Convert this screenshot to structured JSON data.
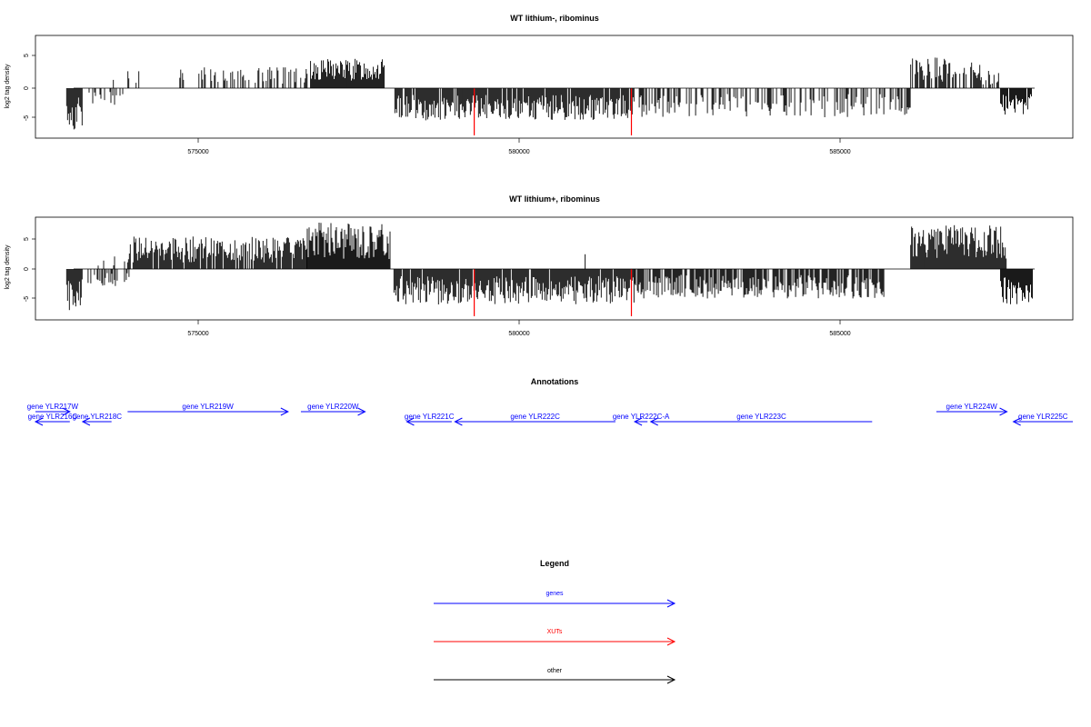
{
  "chart_data": [
    {
      "type": "bar",
      "title": "WT lithium-, ribominus",
      "ylabel": "log2 tag density",
      "xlim": [
        572200,
        588700
      ],
      "ylim": [
        -8.5,
        8.5
      ],
      "x_ticks": [
        575000,
        580000,
        585000
      ],
      "x_tick_labels": [
        "575000",
        "580000",
        "585000"
      ],
      "y_ticks": [
        -5,
        0,
        5
      ],
      "y_tick_labels": [
        "-5",
        "0",
        "5"
      ],
      "series": [
        {
          "strand": "plus",
          "color": "#000000",
          "segments": [
            {
              "from": 573650,
              "to": 574300,
              "density": 0.15,
              "max": 3.4,
              "seed": 11
            },
            {
              "from": 574700,
              "to": 576700,
              "density": 0.35,
              "max": 3.6,
              "seed": 12
            },
            {
              "from": 576750,
              "to": 577900,
              "density": 1.0,
              "max": 5.0,
              "seed": 13
            },
            {
              "from": 586100,
              "to": 587200,
              "density": 0.7,
              "max": 5.2,
              "seed": 14
            },
            {
              "from": 587200,
              "to": 587500,
              "density": 0.3,
              "max": 3.0,
              "seed": 15
            }
          ]
        },
        {
          "strand": "minus",
          "color": "#000000",
          "segments": [
            {
              "from": 572950,
              "to": 573200,
              "density": 1.0,
              "max": 7.0,
              "seed": 21
            },
            {
              "from": 573300,
              "to": 573850,
              "density": 0.25,
              "max": 3.0,
              "seed": 22
            },
            {
              "from": 578050,
              "to": 581800,
              "density": 0.9,
              "max": 5.5,
              "seed": 23
            },
            {
              "from": 581800,
              "to": 586100,
              "density": 0.45,
              "max": 5.0,
              "seed": 24
            },
            {
              "from": 587500,
              "to": 588000,
              "density": 0.95,
              "max": 4.5,
              "seed": 25
            }
          ]
        },
        {
          "strand": "minus",
          "color": "#ff0000",
          "points": [
            {
              "x": 579300,
              "y": -8
            },
            {
              "x": 581750,
              "y": -8
            }
          ]
        }
      ]
    },
    {
      "type": "bar",
      "title": "WT lithium+, ribominus",
      "ylabel": "log2 tag density",
      "xlim": [
        572200,
        588700
      ],
      "ylim": [
        -8.5,
        8.5
      ],
      "x_ticks": [
        575000,
        580000,
        585000
      ],
      "x_tick_labels": [
        "575000",
        "580000",
        "585000"
      ],
      "y_ticks": [
        -5,
        0,
        5
      ],
      "y_tick_labels": [
        "-5",
        "0",
        "5"
      ],
      "series": [
        {
          "strand": "plus",
          "color": "#000000",
          "segments": [
            {
              "from": 573400,
              "to": 573900,
              "density": 0.2,
              "max": 2.5,
              "seed": 31
            },
            {
              "from": 573900,
              "to": 576700,
              "density": 0.85,
              "max": 5.5,
              "seed": 32
            },
            {
              "from": 576700,
              "to": 578000,
              "density": 1.0,
              "max": 8.0,
              "seed": 33
            },
            {
              "from": 581000,
              "to": 581100,
              "density": 0.1,
              "max": 2.5,
              "seed": 34
            },
            {
              "from": 586100,
              "to": 587600,
              "density": 1.0,
              "max": 7.5,
              "seed": 35
            }
          ]
        },
        {
          "strand": "minus",
          "color": "#000000",
          "segments": [
            {
              "from": 572950,
              "to": 573200,
              "density": 1.0,
              "max": 7.5,
              "seed": 41
            },
            {
              "from": 573200,
              "to": 573950,
              "density": 0.45,
              "max": 3.0,
              "seed": 42
            },
            {
              "from": 576300,
              "to": 576400,
              "density": 0.1,
              "max": 3.5,
              "seed": 43
            },
            {
              "from": 578050,
              "to": 581800,
              "density": 0.95,
              "max": 6.0,
              "seed": 44
            },
            {
              "from": 581800,
              "to": 585700,
              "density": 0.8,
              "max": 5.0,
              "seed": 45
            },
            {
              "from": 587500,
              "to": 588000,
              "density": 1.0,
              "max": 6.0,
              "seed": 46
            }
          ]
        },
        {
          "strand": "minus",
          "color": "#ff0000",
          "points": [
            {
              "x": 579300,
              "y": -8
            },
            {
              "x": 581750,
              "y": -8
            }
          ]
        }
      ]
    }
  ],
  "annotations": {
    "title": "Annotations",
    "genes": [
      {
        "label": "gene YLR216C",
        "strand": "-",
        "start": 572200,
        "end": 573000,
        "row": 2
      },
      {
        "label": "gene YLR217W",
        "strand": "+",
        "start": 572200,
        "end": 573000,
        "row": 1
      },
      {
        "label": "gene YLR218C",
        "strand": "-",
        "start": 573200,
        "end": 573650,
        "row": 2
      },
      {
        "label": "gene YLR219W",
        "strand": "+",
        "start": 573900,
        "end": 576400,
        "row": 1
      },
      {
        "label": "gene YLR220W",
        "strand": "+",
        "start": 576600,
        "end": 577600,
        "row": 1
      },
      {
        "label": "gene YLR221C",
        "strand": "-",
        "start": 578250,
        "end": 578950,
        "row": 2
      },
      {
        "label": "gene YLR222C",
        "strand": "-",
        "start": 579000,
        "end": 581500,
        "row": 2
      },
      {
        "label": "gene YLR222C-A",
        "strand": "-",
        "start": 581800,
        "end": 582000,
        "row": 2
      },
      {
        "label": "gene YLR223C",
        "strand": "-",
        "start": 582050,
        "end": 585500,
        "row": 2
      },
      {
        "label": "gene YLR224W",
        "strand": "+",
        "start": 586500,
        "end": 587600,
        "row": 1
      },
      {
        "label": "gene YLR225C",
        "strand": "-",
        "start": 587700,
        "end": 588700,
        "row": 2
      }
    ]
  },
  "legend": {
    "title": "Legend",
    "items": [
      {
        "label": "genes",
        "color": "#0000ff"
      },
      {
        "label": "XUTs",
        "color": "#ff0000"
      },
      {
        "label": "other",
        "color": "#000000"
      }
    ]
  }
}
